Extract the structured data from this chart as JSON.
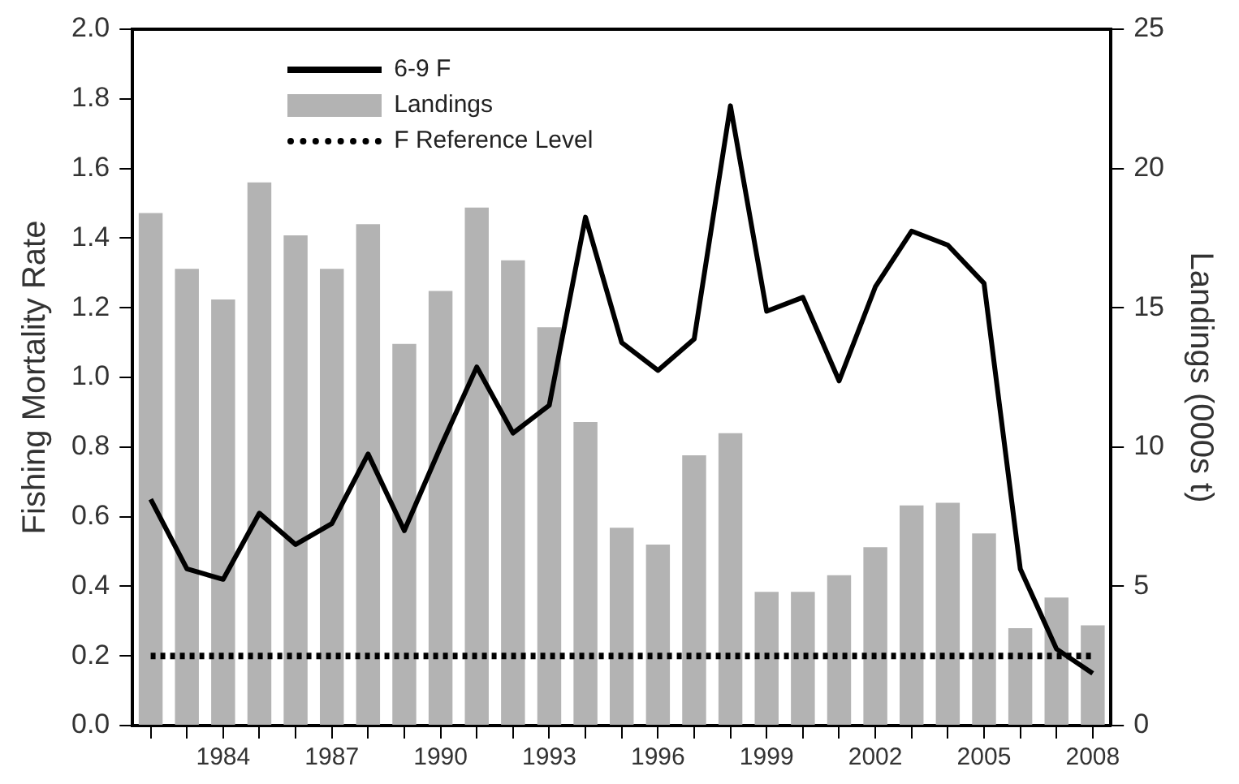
{
  "chart_data": {
    "type": "bar",
    "xlabel": null,
    "ylabel": "Fishing Mortality Rate",
    "y2label": "Landings (000s t)",
    "categories": [
      null,
      null,
      "1984",
      null,
      null,
      "1987",
      null,
      null,
      "1990",
      null,
      null,
      "1993",
      null,
      null,
      "1996",
      null,
      null,
      "1999",
      null,
      null,
      "2002",
      null,
      null,
      "2005",
      null,
      null,
      "2008"
    ],
    "series": [
      {
        "name": "6-9 F",
        "type": "line",
        "color": "#000000",
        "values": [
          0.65,
          0.45,
          0.42,
          0.61,
          0.52,
          0.58,
          0.78,
          0.56,
          0.8,
          1.03,
          0.84,
          0.92,
          1.46,
          1.1,
          1.02,
          1.11,
          1.78,
          1.19,
          1.23,
          0.99,
          1.26,
          1.42,
          1.38,
          1.27,
          0.45,
          0.22,
          0.15
        ]
      },
      {
        "name": "Landings",
        "axis": "y2",
        "color": "#b3b3b3",
        "values": [
          18.4,
          16.4,
          15.3,
          19.5,
          17.6,
          16.4,
          18.0,
          13.7,
          15.6,
          18.6,
          16.7,
          14.3,
          10.9,
          7.1,
          6.5,
          9.7,
          10.5,
          4.8,
          4.8,
          5.4,
          6.4,
          7.9,
          8.0,
          6.9,
          3.5,
          4.6,
          3.6
        ]
      },
      {
        "name": "F Reference Level",
        "type": "line",
        "line_style": "dotted",
        "color": "#000000",
        "values": [
          0.2,
          0.2,
          0.2,
          0.2,
          0.2,
          0.2,
          0.2,
          0.2,
          0.2,
          0.2,
          0.2,
          0.2,
          0.2,
          0.2,
          0.2,
          0.2,
          0.2,
          0.2,
          0.2,
          0.2,
          0.2,
          0.2,
          0.2,
          0.2,
          0.2,
          0.2,
          0.2
        ]
      }
    ],
    "ylim": [
      0,
      2
    ],
    "yticks": [
      {
        "value": 0,
        "label": "0.0"
      },
      0.2,
      0.4,
      0.6,
      0.8,
      {
        "value": 1,
        "label": "1.0"
      },
      1.2,
      1.4,
      1.6,
      1.8,
      {
        "value": 2,
        "label": "2.0"
      }
    ],
    "y2lim": [
      0,
      25
    ],
    "y2ticks": [
      0,
      5,
      10,
      15,
      20,
      25
    ],
    "grid": false,
    "legend": "top left",
    "marker": "none"
  }
}
